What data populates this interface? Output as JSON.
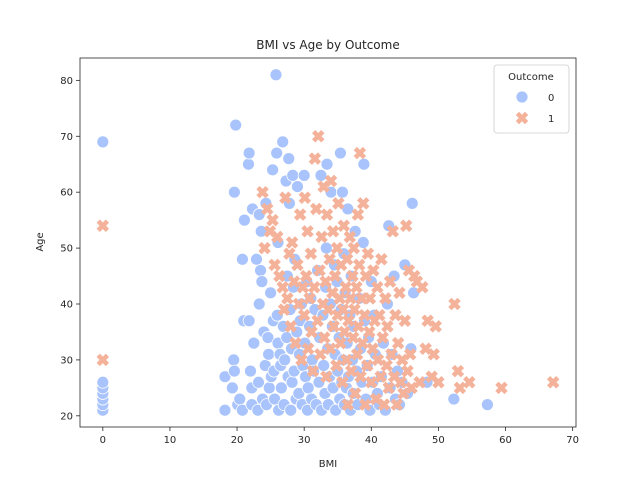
{
  "chart_data": {
    "type": "scatter",
    "title": "BMI vs Age by Outcome",
    "xlabel": "BMI",
    "ylabel": "Age",
    "xlim": [
      -3.4,
      70.5
    ],
    "ylim": [
      18,
      84
    ],
    "xticks": [
      0,
      10,
      20,
      30,
      40,
      50,
      60,
      70
    ],
    "yticks": [
      20,
      30,
      40,
      50,
      60,
      70,
      80
    ],
    "grid": false,
    "legend": {
      "title": "Outcome",
      "position": "top-right",
      "entries": [
        "0",
        "1"
      ]
    },
    "series": [
      {
        "name": "0",
        "marker": "circle",
        "color": "#a9c4fc",
        "points": [
          [
            0,
            21
          ],
          [
            0,
            22
          ],
          [
            0,
            23
          ],
          [
            0,
            24
          ],
          [
            0,
            25
          ],
          [
            0,
            26
          ],
          [
            0,
            69
          ],
          [
            18.2,
            21
          ],
          [
            18.2,
            27
          ],
          [
            19.3,
            25
          ],
          [
            19.5,
            30
          ],
          [
            19.6,
            28
          ],
          [
            19.6,
            60
          ],
          [
            19.8,
            72
          ],
          [
            20.1,
            22
          ],
          [
            20.4,
            23
          ],
          [
            20.8,
            21
          ],
          [
            20.8,
            48
          ],
          [
            21.0,
            37
          ],
          [
            21.1,
            55
          ],
          [
            21.7,
            65
          ],
          [
            21.8,
            67
          ],
          [
            21.8,
            37
          ],
          [
            22.0,
            28
          ],
          [
            22.2,
            22
          ],
          [
            22.2,
            25
          ],
          [
            22.3,
            57
          ],
          [
            22.5,
            33
          ],
          [
            22.9,
            48
          ],
          [
            23.1,
            21
          ],
          [
            23.2,
            26
          ],
          [
            23.3,
            56
          ],
          [
            23.3,
            40
          ],
          [
            23.5,
            46
          ],
          [
            23.6,
            53
          ],
          [
            23.7,
            44
          ],
          [
            23.8,
            23
          ],
          [
            24.0,
            35
          ],
          [
            24.2,
            29
          ],
          [
            24.3,
            58
          ],
          [
            24.4,
            22
          ],
          [
            24.6,
            34
          ],
          [
            24.7,
            31
          ],
          [
            24.8,
            25
          ],
          [
            25.0,
            42
          ],
          [
            25.1,
            27
          ],
          [
            25.3,
            64
          ],
          [
            25.4,
            37
          ],
          [
            25.5,
            28
          ],
          [
            25.6,
            23
          ],
          [
            25.8,
            81
          ],
          [
            25.9,
            67
          ],
          [
            26.0,
            38
          ],
          [
            26.1,
            33
          ],
          [
            26.1,
            51
          ],
          [
            26.2,
            21
          ],
          [
            26.4,
            31
          ],
          [
            26.5,
            29
          ],
          [
            26.6,
            25
          ],
          [
            26.8,
            69
          ],
          [
            26.9,
            36
          ],
          [
            27.0,
            22
          ],
          [
            27.1,
            30
          ],
          [
            27.3,
            62
          ],
          [
            27.4,
            34
          ],
          [
            27.5,
            45
          ],
          [
            27.6,
            27
          ],
          [
            27.7,
            66
          ],
          [
            27.8,
            58
          ],
          [
            27.9,
            39
          ],
          [
            28.0,
            21
          ],
          [
            28.1,
            32
          ],
          [
            28.2,
            26
          ],
          [
            28.3,
            63
          ],
          [
            28.4,
            43
          ],
          [
            28.5,
            28
          ],
          [
            28.6,
            48
          ],
          [
            28.8,
            23
          ],
          [
            28.9,
            35
          ],
          [
            29.0,
            61
          ],
          [
            29.2,
            24
          ],
          [
            29.3,
            31
          ],
          [
            29.4,
            37
          ],
          [
            29.6,
            40
          ],
          [
            29.7,
            22
          ],
          [
            29.8,
            29
          ],
          [
            30.0,
            63
          ],
          [
            30.1,
            33
          ],
          [
            30.2,
            27
          ],
          [
            30.4,
            44
          ],
          [
            30.5,
            21
          ],
          [
            30.6,
            25
          ],
          [
            30.8,
            36
          ],
          [
            31.0,
            41
          ],
          [
            31.1,
            23
          ],
          [
            31.2,
            30
          ],
          [
            31.4,
            28
          ],
          [
            31.6,
            39
          ],
          [
            31.8,
            22
          ],
          [
            32.0,
            46
          ],
          [
            32.2,
            26
          ],
          [
            32.3,
            34
          ],
          [
            32.5,
            63
          ],
          [
            32.6,
            21
          ],
          [
            32.8,
            38
          ],
          [
            32.9,
            29
          ],
          [
            33.1,
            24
          ],
          [
            33.2,
            43
          ],
          [
            33.3,
            50
          ],
          [
            33.4,
            65
          ],
          [
            33.5,
            32
          ],
          [
            33.6,
            22
          ],
          [
            33.8,
            27
          ],
          [
            33.9,
            40
          ],
          [
            34.0,
            60
          ],
          [
            34.2,
            36
          ],
          [
            34.3,
            25
          ],
          [
            34.5,
            47
          ],
          [
            34.6,
            31
          ],
          [
            34.7,
            21
          ],
          [
            34.9,
            44
          ],
          [
            35.0,
            28
          ],
          [
            35.2,
            34
          ],
          [
            35.3,
            23
          ],
          [
            35.4,
            67
          ],
          [
            35.5,
            39
          ],
          [
            35.6,
            26
          ],
          [
            35.7,
            60
          ],
          [
            35.8,
            30
          ],
          [
            35.9,
            49
          ],
          [
            36.0,
            22
          ],
          [
            36.1,
            42
          ],
          [
            36.3,
            25
          ],
          [
            36.4,
            33
          ],
          [
            36.5,
            57
          ],
          [
            36.6,
            27
          ],
          [
            36.8,
            38
          ],
          [
            36.9,
            21
          ],
          [
            37.0,
            45
          ],
          [
            37.2,
            30
          ],
          [
            37.3,
            24
          ],
          [
            37.4,
            36
          ],
          [
            37.6,
            53
          ],
          [
            37.8,
            28
          ],
          [
            38.0,
            22
          ],
          [
            38.2,
            41
          ],
          [
            38.4,
            32
          ],
          [
            38.6,
            26
          ],
          [
            38.8,
            51
          ],
          [
            38.9,
            65
          ],
          [
            39.0,
            37
          ],
          [
            39.2,
            23
          ],
          [
            39.4,
            29
          ],
          [
            39.6,
            34
          ],
          [
            39.8,
            21
          ],
          [
            40.0,
            44
          ],
          [
            40.2,
            26
          ],
          [
            40.4,
            38
          ],
          [
            40.6,
            31
          ],
          [
            40.9,
            24
          ],
          [
            41.2,
            22
          ],
          [
            41.5,
            27
          ],
          [
            41.8,
            33
          ],
          [
            42.1,
            21
          ],
          [
            42.4,
            40
          ],
          [
            42.6,
            54
          ],
          [
            42.8,
            25
          ],
          [
            43.1,
            31
          ],
          [
            43.4,
            45
          ],
          [
            43.6,
            23
          ],
          [
            43.9,
            28
          ],
          [
            44.2,
            22
          ],
          [
            44.6,
            26
          ],
          [
            45.0,
            47
          ],
          [
            45.4,
            24
          ],
          [
            45.9,
            32
          ],
          [
            46.1,
            58
          ],
          [
            46.3,
            42
          ],
          [
            48.3,
            26
          ],
          [
            52.3,
            23
          ],
          [
            57.3,
            22
          ]
        ]
      },
      {
        "name": "1",
        "marker": "x",
        "color": "#f4b29a",
        "points": [
          [
            0,
            54
          ],
          [
            0,
            30
          ],
          [
            23.8,
            60
          ],
          [
            24.1,
            50
          ],
          [
            24.5,
            57
          ],
          [
            24.9,
            53
          ],
          [
            25.3,
            55
          ],
          [
            25.6,
            47
          ],
          [
            26.0,
            52
          ],
          [
            26.3,
            45
          ],
          [
            26.8,
            43
          ],
          [
            27.0,
            39
          ],
          [
            27.2,
            59
          ],
          [
            27.5,
            41
          ],
          [
            27.8,
            49
          ],
          [
            28.0,
            36
          ],
          [
            28.2,
            51
          ],
          [
            28.5,
            44
          ],
          [
            28.7,
            33
          ],
          [
            29.0,
            47
          ],
          [
            29.2,
            40
          ],
          [
            29.4,
            56
          ],
          [
            29.6,
            30
          ],
          [
            29.8,
            43
          ],
          [
            30.0,
            38
          ],
          [
            30.1,
            59
          ],
          [
            30.3,
            45
          ],
          [
            30.5,
            53
          ],
          [
            30.6,
            32
          ],
          [
            30.8,
            41
          ],
          [
            31.0,
            49
          ],
          [
            31.1,
            35
          ],
          [
            31.3,
            28
          ],
          [
            31.5,
            43
          ],
          [
            31.6,
            66
          ],
          [
            31.8,
            57
          ],
          [
            32.0,
            37
          ],
          [
            32.1,
            70
          ],
          [
            32.3,
            46
          ],
          [
            32.4,
            31
          ],
          [
            32.6,
            52
          ],
          [
            32.8,
            40
          ],
          [
            32.9,
            61
          ],
          [
            33.0,
            34
          ],
          [
            33.2,
            44
          ],
          [
            33.3,
            27
          ],
          [
            33.4,
            56
          ],
          [
            33.6,
            39
          ],
          [
            33.8,
            48
          ],
          [
            33.9,
            32
          ],
          [
            34.0,
            62
          ],
          [
            34.2,
            42
          ],
          [
            34.3,
            53
          ],
          [
            34.4,
            36
          ],
          [
            34.6,
            45
          ],
          [
            34.8,
            29
          ],
          [
            34.9,
            50
          ],
          [
            35.0,
            38
          ],
          [
            35.1,
            58
          ],
          [
            35.3,
            41
          ],
          [
            35.4,
            33
          ],
          [
            35.5,
            47
          ],
          [
            35.7,
            26
          ],
          [
            35.8,
            39
          ],
          [
            35.9,
            54
          ],
          [
            36.0,
            35
          ],
          [
            36.2,
            43
          ],
          [
            36.3,
            30
          ],
          [
            36.4,
            48
          ],
          [
            36.5,
            22
          ],
          [
            36.6,
            37
          ],
          [
            36.8,
            52
          ],
          [
            36.9,
            41
          ],
          [
            37.0,
            28
          ],
          [
            37.2,
            45
          ],
          [
            37.3,
            34
          ],
          [
            37.4,
            50
          ],
          [
            37.5,
            39
          ],
          [
            37.6,
            24
          ],
          [
            37.8,
            43
          ],
          [
            37.9,
            31
          ],
          [
            38.0,
            56
          ],
          [
            38.1,
            36
          ],
          [
            38.2,
            47
          ],
          [
            38.3,
            67
          ],
          [
            38.4,
            27
          ],
          [
            38.6,
            41
          ],
          [
            38.7,
            33
          ],
          [
            38.8,
            58
          ],
          [
            39.0,
            38
          ],
          [
            39.1,
            22
          ],
          [
            39.2,
            45
          ],
          [
            39.4,
            29
          ],
          [
            39.5,
            49
          ],
          [
            39.7,
            35
          ],
          [
            39.8,
            41
          ],
          [
            40.0,
            26
          ],
          [
            40.2,
            32
          ],
          [
            40.3,
            46
          ],
          [
            40.5,
            37
          ],
          [
            40.7,
            23
          ],
          [
            40.9,
            43
          ],
          [
            41.0,
            30
          ],
          [
            41.2,
            38
          ],
          [
            41.4,
            27
          ],
          [
            41.5,
            48
          ],
          [
            41.7,
            34
          ],
          [
            41.9,
            22
          ],
          [
            42.1,
            41
          ],
          [
            42.3,
            29
          ],
          [
            42.4,
            36
          ],
          [
            42.6,
            25
          ],
          [
            42.8,
            44
          ],
          [
            43.0,
            31
          ],
          [
            43.2,
            53
          ],
          [
            43.4,
            27
          ],
          [
            43.6,
            38
          ],
          [
            43.8,
            22
          ],
          [
            44.0,
            33
          ],
          [
            44.2,
            42
          ],
          [
            44.4,
            26
          ],
          [
            44.6,
            30
          ],
          [
            44.8,
            24
          ],
          [
            45.0,
            37
          ],
          [
            45.2,
            54
          ],
          [
            45.4,
            28
          ],
          [
            45.6,
            46
          ],
          [
            45.8,
            31
          ],
          [
            46.0,
            25
          ],
          [
            46.4,
            45
          ],
          [
            46.8,
            44
          ],
          [
            47.2,
            26
          ],
          [
            47.6,
            43
          ],
          [
            48.1,
            32
          ],
          [
            48.4,
            37
          ],
          [
            49.0,
            27
          ],
          [
            49.3,
            31
          ],
          [
            49.6,
            36
          ],
          [
            50.0,
            26
          ],
          [
            52.4,
            40
          ],
          [
            52.9,
            28
          ],
          [
            53.2,
            25
          ],
          [
            54.6,
            26
          ],
          [
            59.4,
            25
          ],
          [
            67.1,
            26
          ]
        ]
      }
    ]
  }
}
